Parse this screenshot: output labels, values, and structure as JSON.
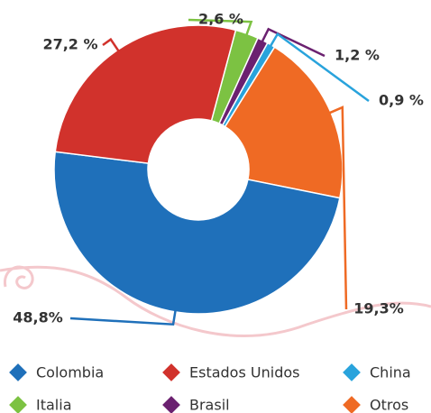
{
  "chart_data": {
    "type": "donut",
    "categories": [
      "Colombia",
      "Estados Unidos",
      "China",
      "Italia",
      "Brasil",
      "Otros"
    ],
    "values": [
      48.8,
      27.2,
      0.9,
      2.6,
      1.2,
      19.3
    ],
    "value_labels": [
      "48,8%",
      "27,2 %",
      "0,9 %",
      "2,6 %",
      "1,2 %",
      "19,3%"
    ],
    "colors": [
      "#1f70ba",
      "#d1322c",
      "#29a3dc",
      "#7cc242",
      "#6b2170",
      "#ef6a24"
    ]
  }
}
